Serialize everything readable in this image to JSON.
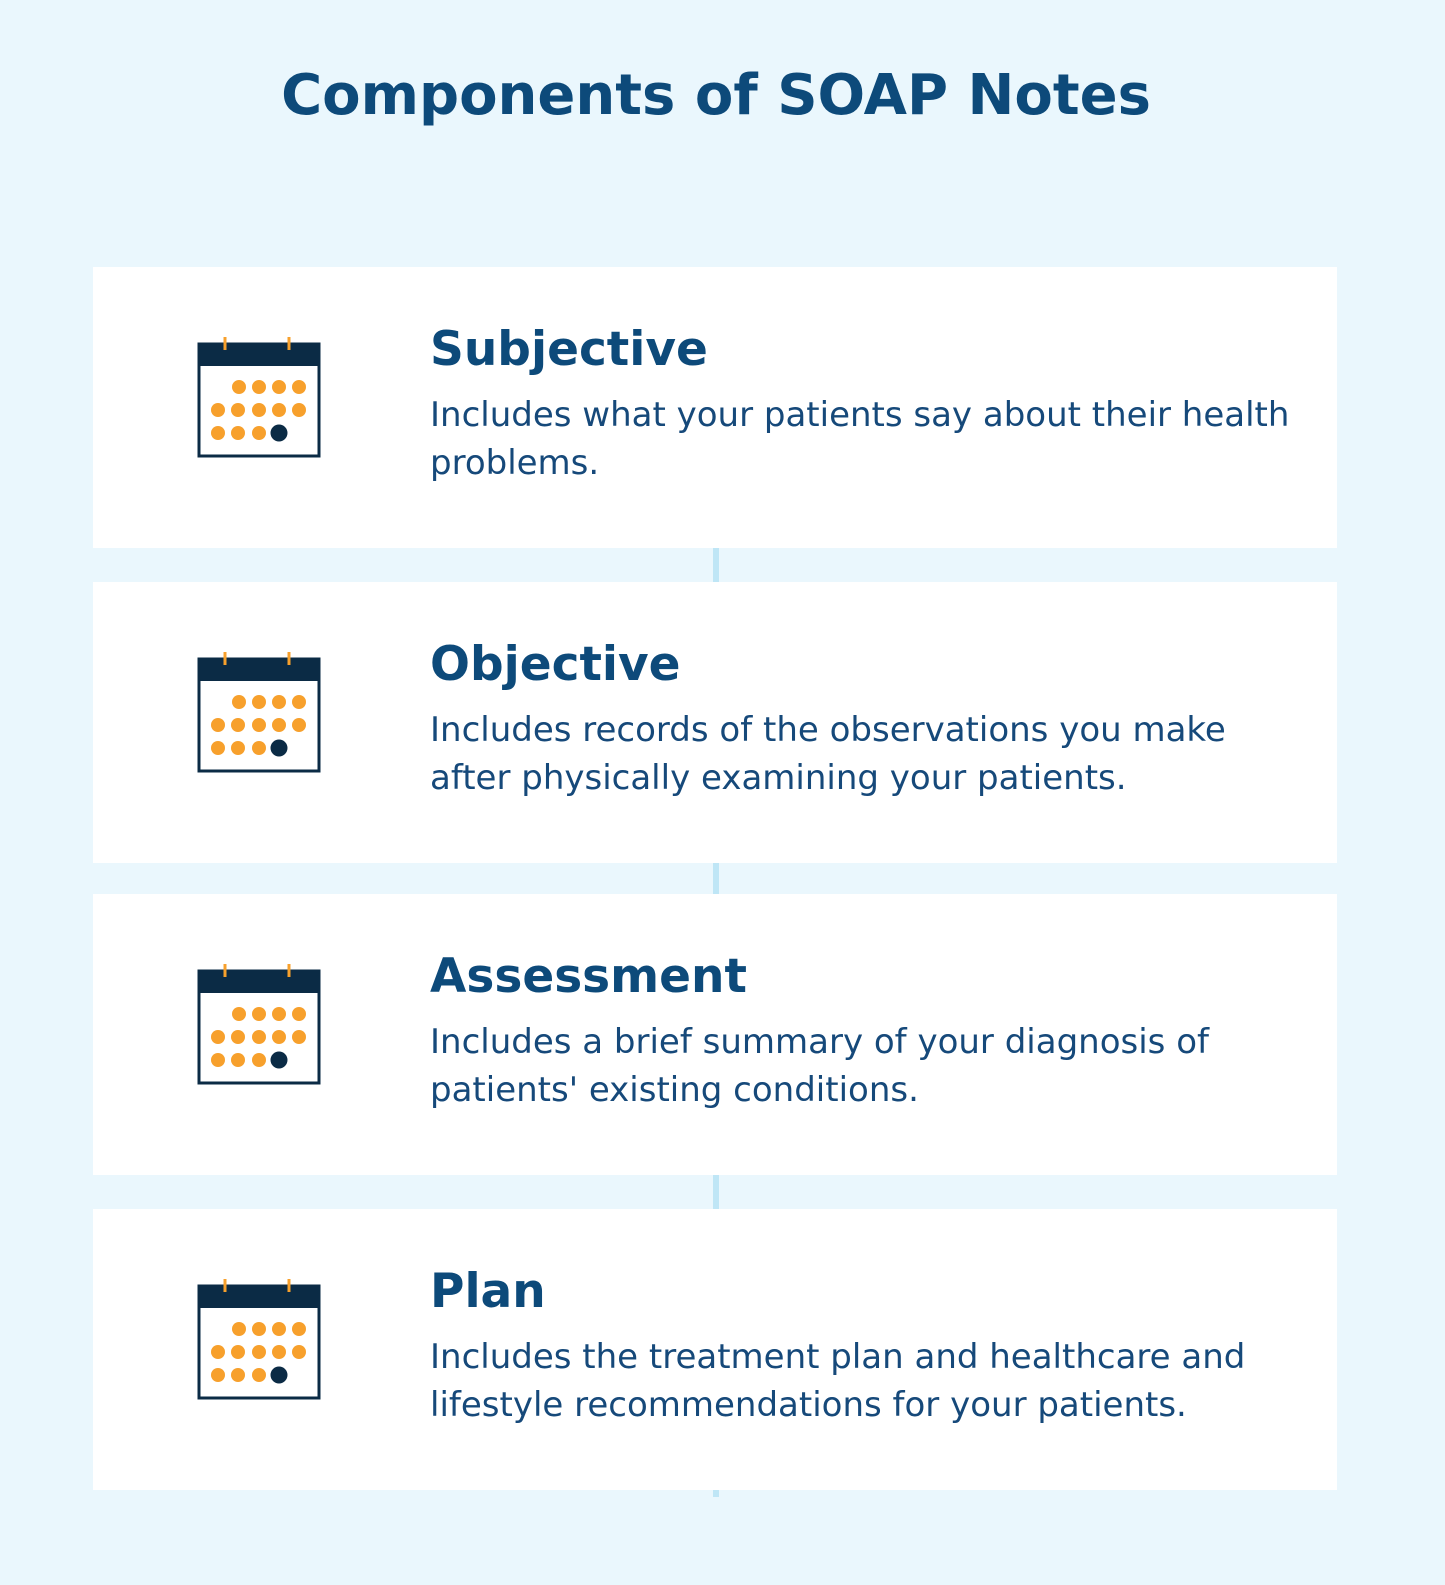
{
  "title": "Components of SOAP Notes",
  "colors": {
    "background": "#eaf7fd",
    "card": "#ffffff",
    "heading": "#0d4a7a",
    "text": "#16497a",
    "connector": "#bfe6f6",
    "icon_dark": "#0b2b45",
    "icon_dot": "#f7a02c"
  },
  "icon": "calendar-icon",
  "sections": [
    {
      "title": "Subjective",
      "description": "Includes what your patients say about their health problems."
    },
    {
      "title": "Objective",
      "description": "Includes records of the observations you make after physically examining your patients."
    },
    {
      "title": "Assessment",
      "description": "Includes a brief summary of your diagnosis of patients' existing conditions."
    },
    {
      "title": "Plan",
      "description": "Includes the treatment plan and healthcare and lifestyle recommendations for your patients."
    }
  ]
}
